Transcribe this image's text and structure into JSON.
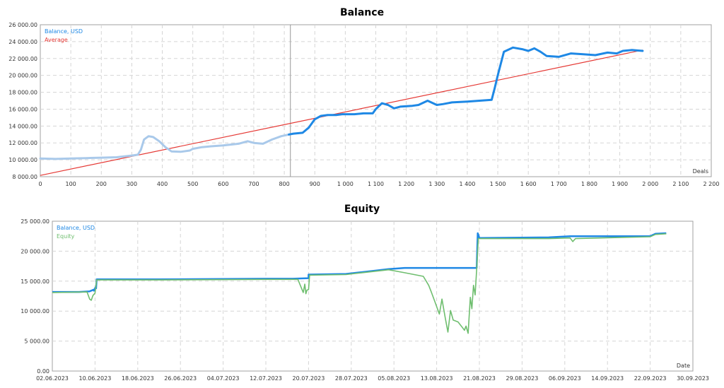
{
  "chart_data": [
    {
      "type": "line",
      "title": "Balance",
      "xlabel": "Deals",
      "ylabel": "",
      "xlim": [
        0,
        2200
      ],
      "ylim": [
        8000,
        26000
      ],
      "grid": true,
      "legend_position": "top-left",
      "x_ticks": [
        "0",
        "100",
        "200",
        "300",
        "400",
        "500",
        "600",
        "700",
        "800",
        "900",
        "1 000",
        "1 100",
        "1 200",
        "1 300",
        "1 400",
        "1 500",
        "1 600",
        "1 700",
        "1 800",
        "1 900",
        "2 000",
        "2 100",
        "2 200"
      ],
      "y_ticks": [
        "8 000.00",
        "10 000.00",
        "12 000.00",
        "14 000.00",
        "16 000.00",
        "18 000.00",
        "20 000.00",
        "22 000.00",
        "24 000.00",
        "26 000.00"
      ],
      "cursor_x": 820,
      "series": [
        {
          "name": "Balance, USD",
          "color": "#1e88e5",
          "faded_color": "#a9c9ea",
          "faded_until": 820,
          "points": [
            [
              0,
              10150
            ],
            [
              50,
              10100
            ],
            [
              100,
              10150
            ],
            [
              150,
              10200
            ],
            [
              200,
              10250
            ],
            [
              250,
              10300
            ],
            [
              300,
              10500
            ],
            [
              320,
              10600
            ],
            [
              330,
              11200
            ],
            [
              340,
              12400
            ],
            [
              355,
              12800
            ],
            [
              370,
              12700
            ],
            [
              390,
              12200
            ],
            [
              410,
              11500
            ],
            [
              430,
              11000
            ],
            [
              460,
              10950
            ],
            [
              490,
              11100
            ],
            [
              500,
              11300
            ],
            [
              530,
              11500
            ],
            [
              560,
              11600
            ],
            [
              600,
              11700
            ],
            [
              650,
              11900
            ],
            [
              680,
              12200
            ],
            [
              700,
              12000
            ],
            [
              730,
              11900
            ],
            [
              760,
              12400
            ],
            [
              790,
              12800
            ],
            [
              815,
              13000
            ],
            [
              830,
              13100
            ],
            [
              860,
              13200
            ],
            [
              880,
              13800
            ],
            [
              900,
              14800
            ],
            [
              920,
              15200
            ],
            [
              940,
              15300
            ],
            [
              970,
              15300
            ],
            [
              990,
              15400
            ],
            [
              1030,
              15400
            ],
            [
              1060,
              15500
            ],
            [
              1090,
              15500
            ],
            [
              1100,
              16000
            ],
            [
              1120,
              16700
            ],
            [
              1140,
              16500
            ],
            [
              1160,
              16100
            ],
            [
              1180,
              16300
            ],
            [
              1220,
              16400
            ],
            [
              1240,
              16500
            ],
            [
              1270,
              17000
            ],
            [
              1300,
              16500
            ],
            [
              1320,
              16600
            ],
            [
              1350,
              16800
            ],
            [
              1400,
              16900
            ],
            [
              1440,
              17000
            ],
            [
              1480,
              17100
            ],
            [
              1490,
              18500
            ],
            [
              1500,
              20000
            ],
            [
              1520,
              22800
            ],
            [
              1550,
              23300
            ],
            [
              1580,
              23100
            ],
            [
              1600,
              22900
            ],
            [
              1620,
              23200
            ],
            [
              1640,
              22800
            ],
            [
              1660,
              22300
            ],
            [
              1700,
              22200
            ],
            [
              1740,
              22600
            ],
            [
              1780,
              22500
            ],
            [
              1820,
              22400
            ],
            [
              1860,
              22700
            ],
            [
              1890,
              22600
            ],
            [
              1910,
              22900
            ],
            [
              1940,
              23000
            ],
            [
              1975,
              22900
            ]
          ]
        },
        {
          "name": "Average",
          "color": "#e53935",
          "points": [
            [
              0,
              8150
            ],
            [
              1975,
              23000
            ]
          ]
        }
      ]
    },
    {
      "type": "line",
      "title": "Equity",
      "xlabel": "Date",
      "ylabel": "",
      "xlim": [
        0,
        120
      ],
      "ylim": [
        0,
        25000
      ],
      "grid": true,
      "legend_position": "top-left",
      "x_ticks": [
        "02.06.2023",
        "10.06.2023",
        "18.06.2023",
        "26.06.2023",
        "04.07.2023",
        "12.07.2023",
        "20.07.2023",
        "28.07.2023",
        "05.08.2023",
        "13.08.2023",
        "21.08.2023",
        "29.08.2023",
        "06.09.2023",
        "14.09.2023",
        "22.09.2023",
        "30.09.2023"
      ],
      "y_ticks": [
        "0.00",
        "5 000.00",
        "10 000.00",
        "15 000.00",
        "20 000.00",
        "25 000.00"
      ],
      "series": [
        {
          "name": "Balance, USD",
          "color": "#1e88e5",
          "points": [
            [
              0,
              13200
            ],
            [
              5,
              13200
            ],
            [
              7,
              13300
            ],
            [
              7.8,
              13600
            ],
            [
              7.8,
              13400
            ],
            [
              8.1,
              14000
            ],
            [
              8.2,
              13800
            ],
            [
              8.3,
              15300
            ],
            [
              20,
              15300
            ],
            [
              40,
              15400
            ],
            [
              45,
              15400
            ],
            [
              48,
              15500
            ],
            [
              48,
              16100
            ],
            [
              55,
              16200
            ],
            [
              58,
              16500
            ],
            [
              63,
              17000
            ],
            [
              66,
              17200
            ],
            [
              79.5,
              17200
            ],
            [
              79.7,
              23000
            ],
            [
              80,
              22200
            ],
            [
              93,
              22300
            ],
            [
              97,
              22500
            ],
            [
              112,
              22500
            ],
            [
              113,
              22900
            ],
            [
              115,
              23000
            ]
          ]
        },
        {
          "name": "Equity",
          "color": "#6fbe6f",
          "points": [
            [
              0,
              13100
            ],
            [
              6.5,
              13200
            ],
            [
              7.0,
              12000
            ],
            [
              7.3,
              11800
            ],
            [
              7.6,
              12600
            ],
            [
              8.0,
              13000
            ],
            [
              8.3,
              15200
            ],
            [
              20,
              15200
            ],
            [
              40,
              15300
            ],
            [
              46,
              15300
            ],
            [
              46.5,
              14200
            ],
            [
              47,
              13100
            ],
            [
              47.3,
              14500
            ],
            [
              47.5,
              12900
            ],
            [
              47.7,
              13500
            ],
            [
              48,
              13600
            ],
            [
              48.2,
              16000
            ],
            [
              55,
              16100
            ],
            [
              58,
              16400
            ],
            [
              63,
              16900
            ],
            [
              66,
              16400
            ],
            [
              69.5,
              15800
            ],
            [
              70.5,
              14300
            ],
            [
              71,
              13200
            ],
            [
              71.7,
              11500
            ],
            [
              72.5,
              9500
            ],
            [
              73,
              12000
            ],
            [
              73.6,
              8900
            ],
            [
              74.1,
              6500
            ],
            [
              74.6,
              10100
            ],
            [
              75.1,
              8500
            ],
            [
              76,
              8200
            ],
            [
              76.7,
              7400
            ],
            [
              77.2,
              6800
            ],
            [
              77.5,
              7500
            ],
            [
              77.9,
              6300
            ],
            [
              78.3,
              12300
            ],
            [
              78.6,
              10400
            ],
            [
              78.9,
              14300
            ],
            [
              79.2,
              12700
            ],
            [
              79.5,
              17000
            ],
            [
              79.8,
              22100
            ],
            [
              93,
              22100
            ],
            [
              97,
              22200
            ],
            [
              97.5,
              21600
            ],
            [
              98,
              22100
            ],
            [
              112,
              22400
            ],
            [
              113,
              22800
            ],
            [
              115,
              22900
            ]
          ]
        }
      ]
    }
  ]
}
